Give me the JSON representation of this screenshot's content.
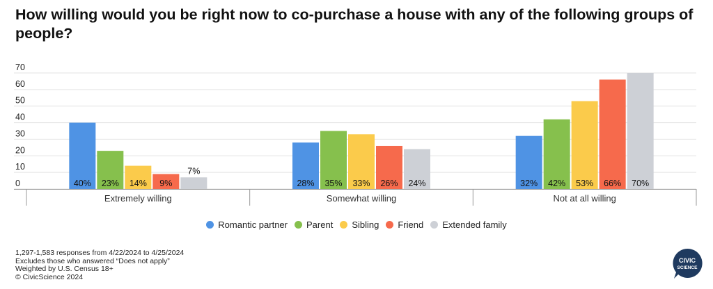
{
  "title": "How willing would you be right now to co-purchase a house with any of the following groups of people?",
  "chart_data": {
    "type": "bar",
    "categories": [
      "Extremely willing",
      "Somewhat willing",
      "Not at all willing"
    ],
    "series": [
      {
        "name": "Romantic partner",
        "color": "#4f93e4",
        "values": [
          40,
          28,
          32
        ],
        "labels": [
          "40%",
          "28%",
          "32%"
        ]
      },
      {
        "name": "Parent",
        "color": "#86c04d",
        "values": [
          23,
          35,
          42
        ],
        "labels": [
          "23%",
          "35%",
          "42%"
        ]
      },
      {
        "name": "Sibling",
        "color": "#fbcb4b",
        "values": [
          14,
          33,
          53
        ],
        "labels": [
          "14%",
          "33%",
          "53%"
        ]
      },
      {
        "name": "Friend",
        "color": "#f66a4c",
        "values": [
          9,
          26,
          66
        ],
        "labels": [
          "9%",
          "26%",
          "66%"
        ]
      },
      {
        "name": "Extended family",
        "color": "#cdd0d6",
        "values": [
          7,
          24,
          70
        ],
        "labels": [
          "7%",
          "24%",
          "70%"
        ]
      }
    ],
    "yticks": [
      "0",
      "10",
      "20",
      "30",
      "40",
      "50",
      "60",
      "70"
    ],
    "ylim": [
      0,
      70
    ],
    "grid": true,
    "legend_position": "bottom"
  },
  "notes": [
    "1,297-1,583 responses from 4/22/2024 to 4/25/2024",
    "Excludes those who answered “Does not apply”",
    "Weighted by U.S. Census 18+",
    "© CivicScience 2024"
  ],
  "logo": {
    "line1": "CIVIC",
    "line2": "SCIENCE",
    "color": "#1f3a5f"
  }
}
